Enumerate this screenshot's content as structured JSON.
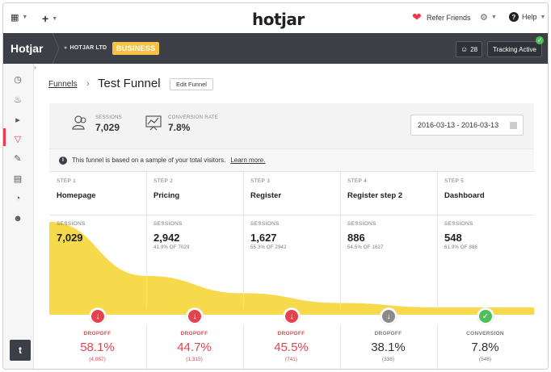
{
  "topbar": {
    "logo_main": "hotjar",
    "refer_label": "Refer Friends",
    "help_label": "Help"
  },
  "header": {
    "brand": "Hotjar",
    "org": "HOTJAR LTD",
    "plan": "BUSINESS",
    "users_count": "28",
    "tracking_label": "Tracking Active"
  },
  "page": {
    "breadcrumb": "Funnels",
    "title": "Test Funnel",
    "edit_label": "Edit Funnel"
  },
  "summary": {
    "sessions_label": "SESSIONS",
    "sessions_value": "7,029",
    "conversion_label": "CONVERSION RATE",
    "conversion_value": "7.8%",
    "date_range": "2016-03-13 - 2016-03-13"
  },
  "notice": {
    "text": "This funnel is based on a sample of your total visitors.",
    "link": "Learn more."
  },
  "steps": [
    {
      "num": "STEP 1",
      "name": "Homepage",
      "sessions_label": "SESSIONS",
      "sessions": "7,029",
      "sub": "",
      "sessions_n": 7029,
      "drop_label": "DROPOFF",
      "drop_pct": "58.1%",
      "drop_count": "(4,087)",
      "kind": "drop"
    },
    {
      "num": "STEP 2",
      "name": "Pricing",
      "sessions_label": "SESSIONS",
      "sessions": "2,942",
      "sub": "41.9% OF 7029",
      "sessions_n": 2942,
      "drop_label": "DROPOFF",
      "drop_pct": "44.7%",
      "drop_count": "(1,315)",
      "kind": "drop"
    },
    {
      "num": "STEP 3",
      "name": "Register",
      "sessions_label": "SESSIONS",
      "sessions": "1,627",
      "sub": "55.3% OF 2942",
      "sessions_n": 1627,
      "drop_label": "DROPOFF",
      "drop_pct": "45.5%",
      "drop_count": "(741)",
      "kind": "drop"
    },
    {
      "num": "STEP 4",
      "name": "Register step 2",
      "sessions_label": "SESSIONS",
      "sessions": "886",
      "sub": "54.5% OF 1627",
      "sessions_n": 886,
      "drop_label": "DROPOFF",
      "drop_pct": "38.1%",
      "drop_count": "(338)",
      "kind": "drop-grey"
    },
    {
      "num": "STEP 5",
      "name": "Dashboard",
      "sessions_label": "SESSIONS",
      "sessions": "548",
      "sub": "61.9% OF 886",
      "sessions_n": 548,
      "drop_label": "CONVERSION",
      "drop_pct": "7.8%",
      "drop_count": "(548)",
      "kind": "conversion"
    }
  ],
  "colors": {
    "accent_red": "#e0454f",
    "funnel_yellow": "#f7d94c",
    "grey_marker": "#8a8a8a",
    "green_marker": "#4fbf5b"
  },
  "icons": {
    "twitter": "twitter-icon",
    "info": "info-icon"
  }
}
